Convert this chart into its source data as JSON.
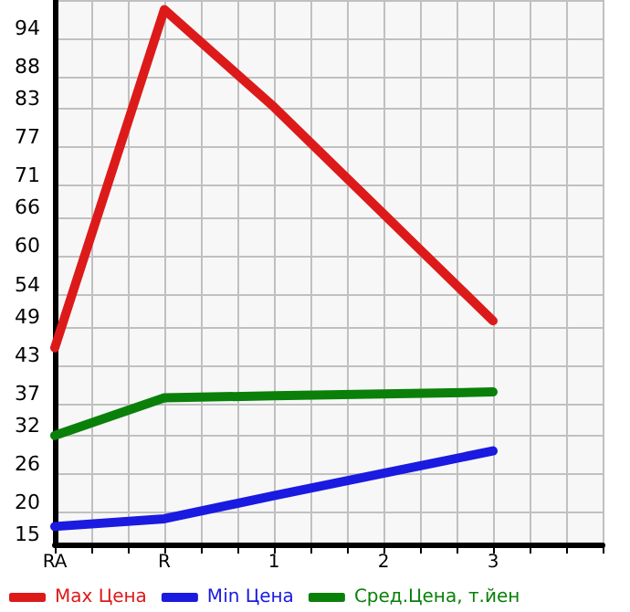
{
  "chart_data": {
    "type": "line",
    "categories": [
      "RA",
      "R",
      "1",
      "2",
      "3",
      null
    ],
    "series": [
      {
        "name": "Max Цена",
        "color": "#dd1a1a",
        "values": [
          45.7,
          98.5,
          83.3,
          66.6,
          49.9,
          null
        ]
      },
      {
        "name": "Min Цена",
        "color": "#1a1ae0",
        "values": [
          17.8,
          19,
          22.6,
          26.1,
          29.6,
          null
        ]
      },
      {
        "name": "Сред.Цена, т.йен",
        "color": "#0a800a",
        "values": [
          32,
          37.9,
          38.2,
          38.5,
          38.8,
          null
        ]
      }
    ],
    "ylim": [
      15,
      100
    ],
    "yticks": [
      15,
      20,
      26,
      32,
      37,
      43,
      49,
      54,
      60,
      66,
      71,
      77,
      83,
      88,
      94,
      {
        "value": 100,
        "label": null
      }
    ],
    "grid": true,
    "legend": "bottom",
    "marker": "none",
    "line_style": "solid"
  }
}
